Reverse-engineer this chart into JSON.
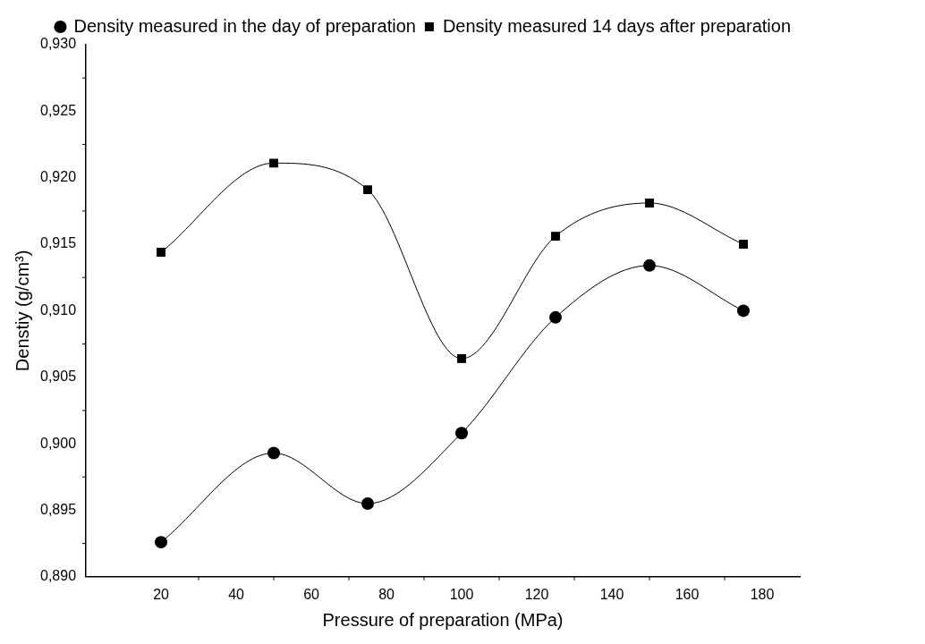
{
  "chart_data": {
    "type": "line",
    "xlabel": "Pressure of preparation (MPa)",
    "ylabel": "Denstiy (g/cm³)",
    "x": [
      20,
      50,
      75,
      100,
      125,
      150,
      175
    ],
    "series": [
      {
        "name": "Density measured in the day of preparation",
        "color": "#000000",
        "marker": "circle",
        "values": [
          0.8926,
          0.8993,
          0.8955,
          0.9008,
          0.9095,
          0.9134,
          0.91
        ]
      },
      {
        "name": "Density measured 14 days after preparation",
        "color": "#000000",
        "marker": "square",
        "values": [
          0.9144,
          0.9211,
          0.9191,
          0.9064,
          0.9156,
          0.9181,
          0.915
        ]
      }
    ],
    "xlim": [
      0,
      190
    ],
    "xticks": [
      20,
      40,
      60,
      80,
      100,
      120,
      140,
      160,
      180
    ],
    "ylim": [
      0.89,
      0.93
    ],
    "yticks": [
      {
        "value": 0.89,
        "label": "0,890"
      },
      {
        "value": 0.895,
        "label": "0,895"
      },
      {
        "value": 0.9,
        "label": "0,900"
      },
      {
        "value": 0.905,
        "label": "0,905"
      },
      {
        "value": 0.91,
        "label": "0,910"
      },
      {
        "value": 0.915,
        "label": "0,915"
      },
      {
        "value": 0.92,
        "label": "0,920"
      },
      {
        "value": 0.925,
        "label": "0,925"
      },
      {
        "value": 0.93,
        "label": "0,930"
      }
    ],
    "grid": false,
    "legend": "top right",
    "line_style": "solid"
  }
}
